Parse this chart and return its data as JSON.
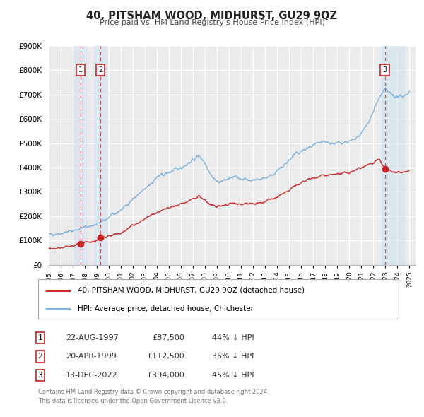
{
  "title": "40, PITSHAM WOOD, MIDHURST, GU29 9QZ",
  "subtitle": "Price paid vs. HM Land Registry's House Price Index (HPI)",
  "ylim": [
    0,
    900000
  ],
  "yticks": [
    0,
    100000,
    200000,
    300000,
    400000,
    500000,
    600000,
    700000,
    800000,
    900000
  ],
  "ytick_labels": [
    "£0",
    "£100K",
    "£200K",
    "£300K",
    "£400K",
    "£500K",
    "£600K",
    "£700K",
    "£800K",
    "£900K"
  ],
  "background_color": "#ffffff",
  "plot_bg_color": "#ebebeb",
  "grid_color": "#ffffff",
  "hpi_color": "#7aadda",
  "price_color": "#cc2222",
  "legend_label_price": "40, PITSHAM WOOD, MIDHURST, GU29 9QZ (detached house)",
  "legend_label_hpi": "HPI: Average price, detached house, Chichester",
  "sale_years": [
    1997.644,
    1999.304,
    2022.956
  ],
  "sale_prices": [
    87500,
    112500,
    394000
  ],
  "sale_labels": [
    "1",
    "2",
    "3"
  ],
  "sale_table": [
    {
      "num": "1",
      "date": "22-AUG-1997",
      "price": "£87,500",
      "hpi": "44% ↓ HPI"
    },
    {
      "num": "2",
      "date": "20-APR-1999",
      "price": "£112,500",
      "hpi": "36% ↓ HPI"
    },
    {
      "num": "3",
      "date": "13-DEC-2022",
      "price": "£394,000",
      "hpi": "45% ↓ HPI"
    }
  ],
  "footer": "Contains HM Land Registry data © Crown copyright and database right 2024.\nThis data is licensed under the Open Government Licence v3.0.",
  "xstart": 1995.0,
  "xend": 2025.5,
  "hpi_milestones_t": [
    1995.0,
    1996.0,
    1997.0,
    1998.0,
    1999.0,
    2000.0,
    2001.0,
    2002.0,
    2003.0,
    2004.0,
    2005.0,
    2006.0,
    2007.0,
    2007.5,
    2008.0,
    2008.5,
    2009.0,
    2009.5,
    2010.0,
    2010.5,
    2011.0,
    2011.5,
    2012.0,
    2012.5,
    2013.0,
    2013.5,
    2014.0,
    2014.5,
    2015.0,
    2015.5,
    2016.0,
    2016.5,
    2017.0,
    2017.5,
    2018.0,
    2018.5,
    2019.0,
    2019.5,
    2020.0,
    2020.5,
    2021.0,
    2021.5,
    2022.0,
    2022.5,
    2023.0,
    2023.5,
    2024.0,
    2024.5,
    2025.0
  ],
  "hpi_milestones_v": [
    125000,
    130000,
    140000,
    155000,
    165000,
    195000,
    225000,
    270000,
    310000,
    360000,
    380000,
    400000,
    430000,
    450000,
    420000,
    370000,
    340000,
    345000,
    355000,
    360000,
    355000,
    350000,
    348000,
    352000,
    358000,
    368000,
    385000,
    405000,
    430000,
    455000,
    465000,
    478000,
    488000,
    500000,
    505000,
    500000,
    498000,
    505000,
    505000,
    515000,
    540000,
    580000,
    630000,
    690000,
    720000,
    700000,
    688000,
    695000,
    710000
  ],
  "price_milestones_t": [
    1995.0,
    1996.0,
    1997.0,
    1997.644,
    1998.0,
    1999.0,
    1999.304,
    2000.0,
    2001.0,
    2002.0,
    2003.0,
    2004.0,
    2005.0,
    2006.0,
    2007.0,
    2007.5,
    2008.0,
    2008.5,
    2009.0,
    2009.5,
    2010.0,
    2010.5,
    2011.0,
    2011.5,
    2012.0,
    2012.5,
    2013.0,
    2013.5,
    2014.0,
    2014.5,
    2015.0,
    2015.5,
    2016.0,
    2016.5,
    2017.0,
    2017.5,
    2018.0,
    2018.5,
    2019.0,
    2019.5,
    2020.0,
    2020.5,
    2021.0,
    2021.5,
    2022.0,
    2022.5,
    2022.956,
    2023.0,
    2023.5,
    2024.0,
    2024.5,
    2025.0
  ],
  "price_milestones_v": [
    65000,
    70000,
    78000,
    87500,
    90000,
    100000,
    112500,
    118000,
    130000,
    160000,
    190000,
    215000,
    235000,
    250000,
    270000,
    280000,
    265000,
    245000,
    240000,
    245000,
    248000,
    250000,
    248000,
    250000,
    252000,
    255000,
    260000,
    268000,
    278000,
    290000,
    308000,
    325000,
    338000,
    350000,
    358000,
    365000,
    368000,
    370000,
    372000,
    375000,
    378000,
    390000,
    400000,
    410000,
    420000,
    435000,
    394000,
    390000,
    382000,
    378000,
    382000,
    388000
  ]
}
